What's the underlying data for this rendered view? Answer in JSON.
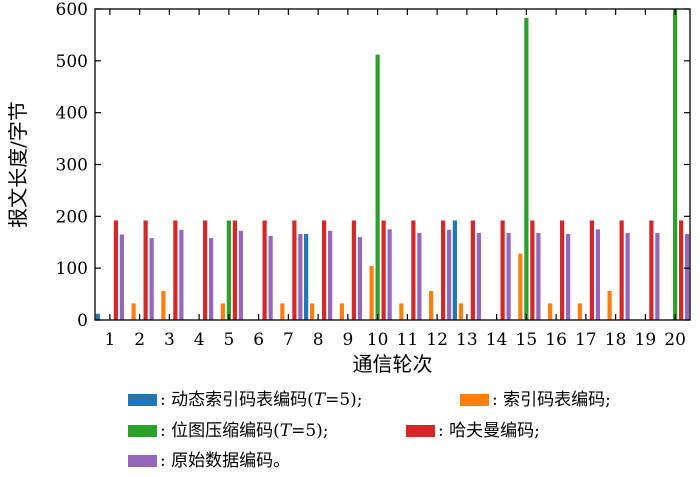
{
  "chart_data": {
    "type": "bar",
    "xlabel": "通信轮次",
    "ylabel": "报文长度/字节",
    "ylim": [
      0,
      600
    ],
    "yticks": [
      0,
      100,
      200,
      300,
      400,
      500,
      600
    ],
    "categories": [
      "1",
      "2",
      "3",
      "4",
      "5",
      "6",
      "7",
      "8",
      "9",
      "10",
      "11",
      "12",
      "13",
      "14",
      "15",
      "16",
      "17",
      "18",
      "19",
      "20"
    ],
    "legend_position": "bottom",
    "series": [
      {
        "name": ": 动态索引码表编码(T=5);",
        "name_parts": {
          "pre": ": 动态索引码表编码(",
          "var": "T",
          "post": "=5);"
        },
        "color": "#1f77b4",
        "values": [
          12,
          0,
          0,
          0,
          0,
          0,
          0,
          166,
          0,
          0,
          0,
          0,
          192,
          0,
          0,
          0,
          0,
          0,
          0,
          0
        ]
      },
      {
        "name": ": 索引码表编码;",
        "color": "#ff7f0e",
        "values": [
          0,
          32,
          56,
          0,
          32,
          0,
          32,
          32,
          32,
          104,
          32,
          56,
          32,
          0,
          128,
          32,
          32,
          56,
          0,
          0
        ]
      },
      {
        "name": ": 位图压缩编码(T=5);",
        "name_parts": {
          "pre": ": 位图压缩编码(",
          "var": "T",
          "post": "=5);"
        },
        "color": "#2ca02c",
        "values": [
          0,
          0,
          0,
          0,
          192,
          0,
          0,
          0,
          0,
          512,
          0,
          0,
          0,
          0,
          583,
          0,
          0,
          0,
          0,
          600
        ]
      },
      {
        "name": ": 哈夫曼编码;",
        "color": "#d62728",
        "values": [
          192,
          192,
          192,
          192,
          192,
          192,
          192,
          192,
          192,
          192,
          192,
          192,
          192,
          192,
          192,
          192,
          192,
          192,
          192,
          192
        ]
      },
      {
        "name": ": 原始数据编码。",
        "color": "#9467bd",
        "values": [
          165,
          158,
          174,
          158,
          172,
          162,
          166,
          172,
          160,
          175,
          168,
          174,
          168,
          168,
          168,
          166,
          175,
          168,
          168,
          166
        ]
      }
    ]
  }
}
